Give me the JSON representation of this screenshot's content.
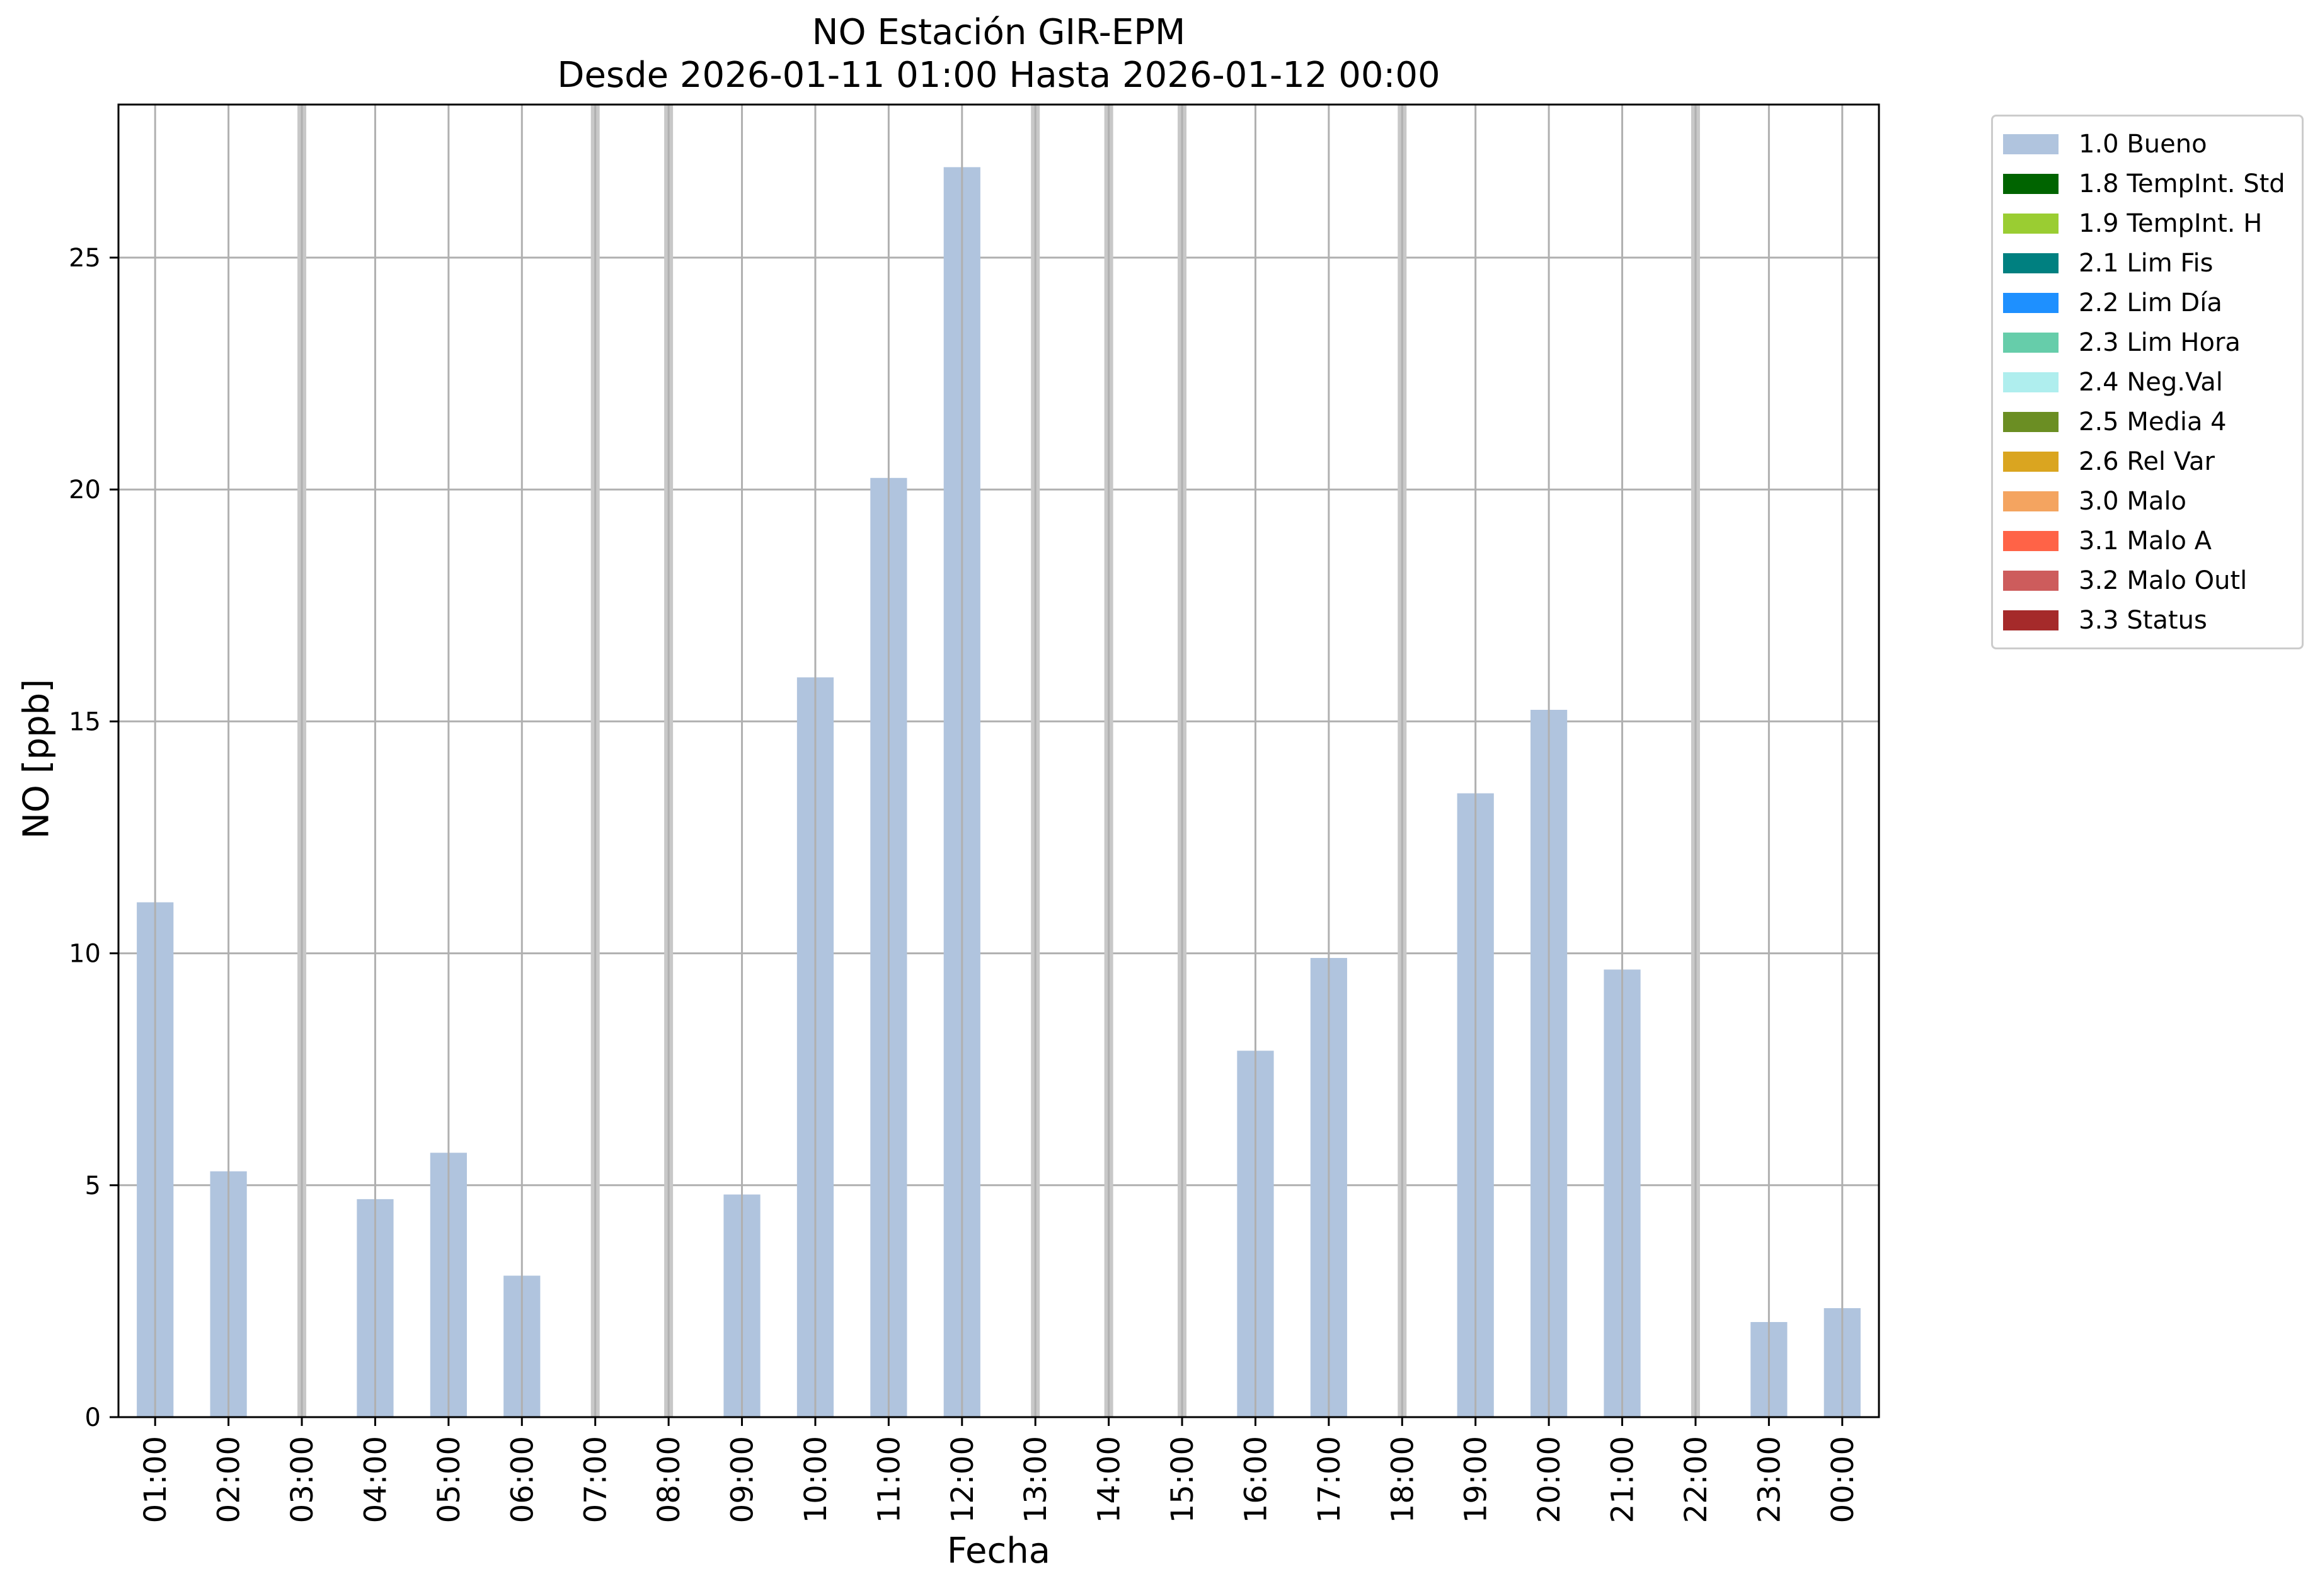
{
  "chart_data": {
    "type": "bar",
    "title": [
      "NO Estación GIR-EPM",
      "Desde 2026-01-11 01:00 Hasta 2026-01-12 00:00"
    ],
    "xlabel": "Fecha",
    "ylabel": "NO [ppb]",
    "ylim": [
      0,
      28.3
    ],
    "yticks": [
      0,
      5,
      10,
      15,
      20,
      25
    ],
    "grid": true,
    "legend_position": "outside-right",
    "categories": [
      "01:00",
      "02:00",
      "03:00",
      "04:00",
      "05:00",
      "06:00",
      "07:00",
      "08:00",
      "09:00",
      "10:00",
      "11:00",
      "12:00",
      "13:00",
      "14:00",
      "15:00",
      "16:00",
      "17:00",
      "18:00",
      "19:00",
      "20:00",
      "21:00",
      "22:00",
      "23:00",
      "00:00"
    ],
    "series": [
      {
        "name": "1.0 Bueno",
        "color": "#b0c4de",
        "values": [
          11.1,
          5.3,
          null,
          4.7,
          5.7,
          3.05,
          null,
          null,
          4.8,
          15.95,
          20.25,
          26.95,
          null,
          null,
          null,
          7.9,
          9.9,
          null,
          13.45,
          15.25,
          9.65,
          null,
          2.05,
          2.35
        ]
      }
    ],
    "missing_marker_color": "#c8c8c8",
    "legend": [
      {
        "label": "1.0 Bueno",
        "color": "#b0c4de"
      },
      {
        "label": "1.8 TempInt. Std",
        "color": "#006400"
      },
      {
        "label": "1.9 TempInt. H",
        "color": "#9acd32"
      },
      {
        "label": "2.1 Lim Fis",
        "color": "#008080"
      },
      {
        "label": "2.2 Lim Día",
        "color": "#1e90ff"
      },
      {
        "label": "2.3 Lim Hora",
        "color": "#66cdaa"
      },
      {
        "label": "2.4 Neg.Val",
        "color": "#afeeee"
      },
      {
        "label": "2.5 Media 4",
        "color": "#6b8e23"
      },
      {
        "label": "2.6 Rel Var",
        "color": "#daa520"
      },
      {
        "label": "3.0 Malo",
        "color": "#f4a460"
      },
      {
        "label": "3.1 Malo A",
        "color": "#ff6347"
      },
      {
        "label": "3.2 Malo Outl",
        "color": "#cd5c5c"
      },
      {
        "label": "3.3 Status",
        "color": "#a52a2a"
      }
    ]
  }
}
